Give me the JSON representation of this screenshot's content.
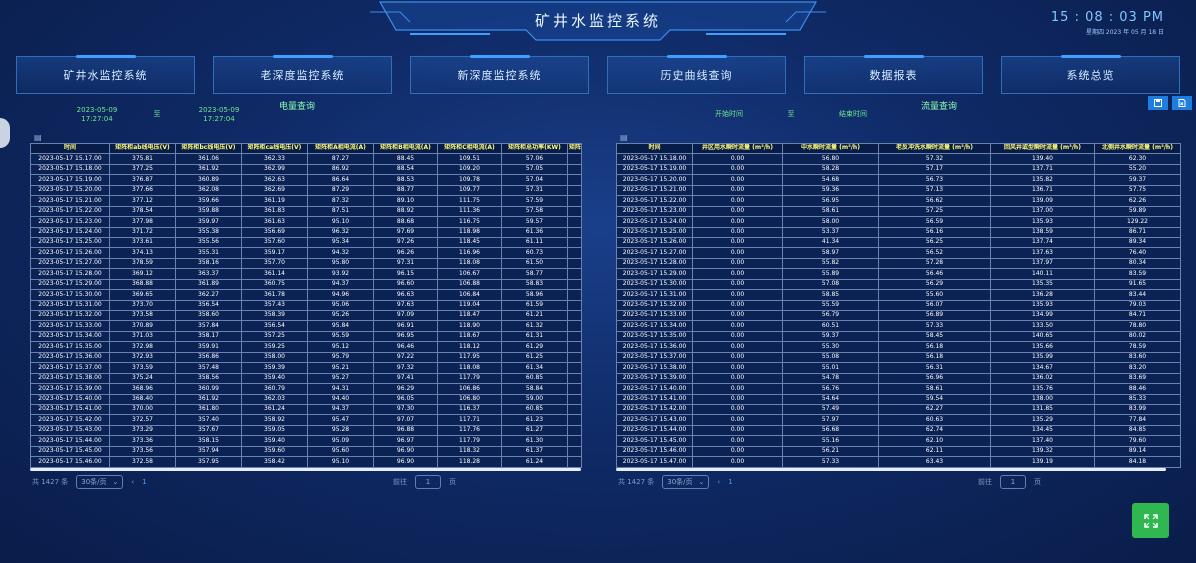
{
  "header": {
    "title": "矿井水监控系统",
    "time": "15 : 08 : 03  PM",
    "date": "星期四   2023 年 05 月 18 日"
  },
  "nav": [
    "矿井水监控系统",
    "老深度监控系统",
    "新深度监控系统",
    "历史曲线查询",
    "数据报表",
    "系统总览"
  ],
  "query": {
    "left_start": "2023-05-09\n17:27:04",
    "left_to": "至",
    "left_end": "2023-05-09\n17:27:04",
    "left_title": "电量查询",
    "right_start_label": "开始时间",
    "right_to": "至",
    "right_end_label": "结束时间",
    "right_title": "流量查询"
  },
  "icons": {
    "export1": "save-icon",
    "export2": "excel-icon",
    "fullscreen": "fullscreen-icon"
  },
  "left_table": {
    "headers": [
      "时间",
      "矩阵柜ab线电压(V)",
      "矩阵柜bc线电压(V)",
      "矩阵柜ca线电压(V)",
      "矩阵柜A相电流(A)",
      "矩阵柜B相电流(A)",
      "矩阵柜C相电流(A)",
      "矩阵柜总功率(KW)",
      "矩阵柜"
    ],
    "rows": [
      [
        "2023-05-17 15.17.00",
        "375.81",
        "361.06",
        "362.33",
        "87.27",
        "88.45",
        "109.51",
        "57.06",
        ""
      ],
      [
        "2023-05-17 15.18.00",
        "377.25",
        "361.92",
        "362.99",
        "86.92",
        "88.54",
        "109.20",
        "57.05",
        ""
      ],
      [
        "2023-05-17 15.19.00",
        "376.87",
        "360.89",
        "362.63",
        "86.64",
        "88.53",
        "109.78",
        "57.04",
        ""
      ],
      [
        "2023-05-17 15.20.00",
        "377.66",
        "362.08",
        "362.69",
        "87.29",
        "88.77",
        "109.77",
        "57.31",
        ""
      ],
      [
        "2023-05-17 15.21.00",
        "377.12",
        "359.66",
        "361.19",
        "87.32",
        "89.10",
        "111.75",
        "57.59",
        ""
      ],
      [
        "2023-05-17 15.22.00",
        "378.54",
        "359.88",
        "361.83",
        "87.51",
        "88.92",
        "111.36",
        "57.58",
        ""
      ],
      [
        "2023-05-17 15.23.00",
        "377.98",
        "359.97",
        "361.63",
        "95.10",
        "88.68",
        "116.75",
        "59.57",
        ""
      ],
      [
        "2023-05-17 15.24.00",
        "371.72",
        "355.38",
        "356.69",
        "96.32",
        "97.69",
        "118.98",
        "61.36",
        ""
      ],
      [
        "2023-05-17 15.25.00",
        "373.61",
        "355.56",
        "357.60",
        "95.34",
        "97.26",
        "118.45",
        "61.11",
        ""
      ],
      [
        "2023-05-17 15.26.00",
        "374.13",
        "355.31",
        "359.17",
        "94.32",
        "96.26",
        "116.96",
        "60.73",
        ""
      ],
      [
        "2023-05-17 15.27.00",
        "378.59",
        "358.16",
        "357.70",
        "95.80",
        "97.31",
        "118.08",
        "61.50",
        ""
      ],
      [
        "2023-05-17 15.28.00",
        "369.12",
        "363.37",
        "361.14",
        "93.92",
        "96.15",
        "106.67",
        "58.77",
        ""
      ],
      [
        "2023-05-17 15.29.00",
        "368.88",
        "361.89",
        "360.75",
        "94.37",
        "96.60",
        "106.88",
        "58.83",
        ""
      ],
      [
        "2023-05-17 15.30.00",
        "369.65",
        "362.27",
        "361.78",
        "94.96",
        "96.63",
        "106.84",
        "58.96",
        ""
      ],
      [
        "2023-05-17 15.31.00",
        "373.70",
        "356.54",
        "357.43",
        "95.06",
        "97.63",
        "119.04",
        "61.59",
        ""
      ],
      [
        "2023-05-17 15.32.00",
        "373.58",
        "358.60",
        "358.39",
        "95.26",
        "97.09",
        "118.47",
        "61.21",
        ""
      ],
      [
        "2023-05-17 15.33.00",
        "370.89",
        "357.84",
        "356.54",
        "95.84",
        "96.91",
        "118.90",
        "61.32",
        ""
      ],
      [
        "2023-05-17 15.34.00",
        "371.03",
        "358.17",
        "357.25",
        "95.59",
        "96.95",
        "118.67",
        "61.31",
        ""
      ],
      [
        "2023-05-17 15.35.00",
        "372.98",
        "359.91",
        "359.25",
        "95.12",
        "96.46",
        "118.12",
        "61.29",
        ""
      ],
      [
        "2023-05-17 15.36.00",
        "372.93",
        "356.86",
        "358.00",
        "95.79",
        "97.22",
        "117.95",
        "61.25",
        ""
      ],
      [
        "2023-05-17 15.37.00",
        "373.59",
        "357.48",
        "359.39",
        "95.21",
        "97.32",
        "118.08",
        "61.34",
        ""
      ],
      [
        "2023-05-17 15.38.00",
        "375.24",
        "358.56",
        "359.40",
        "95.27",
        "97.41",
        "117.79",
        "60.85",
        ""
      ],
      [
        "2023-05-17 15.39.00",
        "368.96",
        "360.99",
        "360.79",
        "94.31",
        "96.29",
        "106.86",
        "58.84",
        ""
      ],
      [
        "2023-05-17 15.40.00",
        "368.40",
        "361.92",
        "362.03",
        "94.40",
        "96.05",
        "106.80",
        "59.00",
        ""
      ],
      [
        "2023-05-17 15.41.00",
        "370.00",
        "361.80",
        "361.24",
        "94.37",
        "97.30",
        "116.37",
        "60.85",
        ""
      ],
      [
        "2023-05-17 15.42.00",
        "372.57",
        "357.40",
        "358.92",
        "95.47",
        "97.07",
        "117.71",
        "61.23",
        ""
      ],
      [
        "2023-05-17 15.43.00",
        "373.29",
        "357.67",
        "359.05",
        "95.28",
        "96.88",
        "117.76",
        "61.27",
        ""
      ],
      [
        "2023-05-17 15.44.00",
        "373.36",
        "358.15",
        "359.40",
        "95.09",
        "96.97",
        "117.79",
        "61.30",
        ""
      ],
      [
        "2023-05-17 15.45.00",
        "373.56",
        "357.94",
        "359.60",
        "95.60",
        "96.90",
        "118.32",
        "61.37",
        ""
      ],
      [
        "2023-05-17 15.46.00",
        "372.58",
        "357.95",
        "358.42",
        "95.10",
        "96.90",
        "118.28",
        "61.24",
        ""
      ]
    ]
  },
  "right_table": {
    "headers": [
      "时间",
      "井区用水瞬时流量 (m³/h)",
      "中水瞬时流量 (m³/h)",
      "老反冲洗水瞬时流量 (m³/h)",
      "回风井或型瞬时流量 (m³/h)",
      "北侧井水瞬时流量 (m³/h)"
    ],
    "rows": [
      [
        "2023-05-17 15.18.00",
        "0.00",
        "56.80",
        "57.32",
        "139.40",
        "62.30"
      ],
      [
        "2023-05-17 15.19.00",
        "0.00",
        "58.28",
        "57.17",
        "137.71",
        "55.20"
      ],
      [
        "2023-05-17 15.20.00",
        "0.00",
        "54.68",
        "56.73",
        "135.82",
        "59.37"
      ],
      [
        "2023-05-17 15.21.00",
        "0.00",
        "59.36",
        "57.13",
        "136.71",
        "57.75"
      ],
      [
        "2023-05-17 15.22.00",
        "0.00",
        "56.95",
        "56.62",
        "139.09",
        "62.26"
      ],
      [
        "2023-05-17 15.23.00",
        "0.00",
        "58.61",
        "57.25",
        "137.00",
        "59.89"
      ],
      [
        "2023-05-17 15.24.00",
        "0.00",
        "58.00",
        "56.59",
        "135.93",
        "129.22"
      ],
      [
        "2023-05-17 15.25.00",
        "0.00",
        "53.37",
        "56.16",
        "138.59",
        "86.71"
      ],
      [
        "2023-05-17 15.26.00",
        "0.00",
        "41.34",
        "56.25",
        "137.74",
        "89.34"
      ],
      [
        "2023-05-17 15.27.00",
        "0.00",
        "58.97",
        "56.52",
        "137.63",
        "76.40"
      ],
      [
        "2023-05-17 15.28.00",
        "0.00",
        "55.82",
        "57.28",
        "137.97",
        "80.34"
      ],
      [
        "2023-05-17 15.29.00",
        "0.00",
        "55.89",
        "56.46",
        "140.11",
        "83.59"
      ],
      [
        "2023-05-17 15.30.00",
        "0.00",
        "57.08",
        "56.29",
        "135.35",
        "91.65"
      ],
      [
        "2023-05-17 15.31.00",
        "0.00",
        "58.85",
        "55.60",
        "136.28",
        "83.44"
      ],
      [
        "2023-05-17 15.32.00",
        "0.00",
        "55.59",
        "56.07",
        "135.93",
        "79.03"
      ],
      [
        "2023-05-17 15.33.00",
        "0.00",
        "56.79",
        "56.89",
        "134.99",
        "84.71"
      ],
      [
        "2023-05-17 15.34.00",
        "0.00",
        "60.51",
        "57.33",
        "133.50",
        "78.80"
      ],
      [
        "2023-05-17 15.35.00",
        "0.00",
        "59.37",
        "58.45",
        "140.65",
        "80.02"
      ],
      [
        "2023-05-17 15.36.00",
        "0.00",
        "55.30",
        "56.18",
        "135.66",
        "78.59"
      ],
      [
        "2023-05-17 15.37.00",
        "0.00",
        "55.08",
        "56.18",
        "135.99",
        "83.60"
      ],
      [
        "2023-05-17 15.38.00",
        "0.00",
        "55.01",
        "56.31",
        "134.67",
        "83.20"
      ],
      [
        "2023-05-17 15.39.00",
        "0.00",
        "54.78",
        "56.96",
        "136.02",
        "83.69"
      ],
      [
        "2023-05-17 15.40.00",
        "0.00",
        "56.76",
        "58.61",
        "135.76",
        "88.46"
      ],
      [
        "2023-05-17 15.41.00",
        "0.00",
        "54.64",
        "59.54",
        "138.00",
        "85.33"
      ],
      [
        "2023-05-17 15.42.00",
        "0.00",
        "57.49",
        "62.27",
        "131.85",
        "83.99"
      ],
      [
        "2023-05-17 15.43.00",
        "0.00",
        "57.97",
        "60.63",
        "135.29",
        "77.84"
      ],
      [
        "2023-05-17 15.44.00",
        "0.00",
        "56.68",
        "62.74",
        "134.45",
        "84.85"
      ],
      [
        "2023-05-17 15.45.00",
        "0.00",
        "55.16",
        "62.10",
        "137.40",
        "79.60"
      ],
      [
        "2023-05-17 15.46.00",
        "0.00",
        "56.21",
        "62.11",
        "139.32",
        "89.14"
      ],
      [
        "2023-05-17 15.47.00",
        "0.00",
        "57.33",
        "63.43",
        "139.19",
        "84.18"
      ]
    ]
  },
  "pager": {
    "total": "共 1427 条",
    "page_size": "30条/页",
    "prev": "‹",
    "page": "1",
    "goto_prefix": "前往",
    "goto_value": "1",
    "goto_suffix": "页"
  }
}
